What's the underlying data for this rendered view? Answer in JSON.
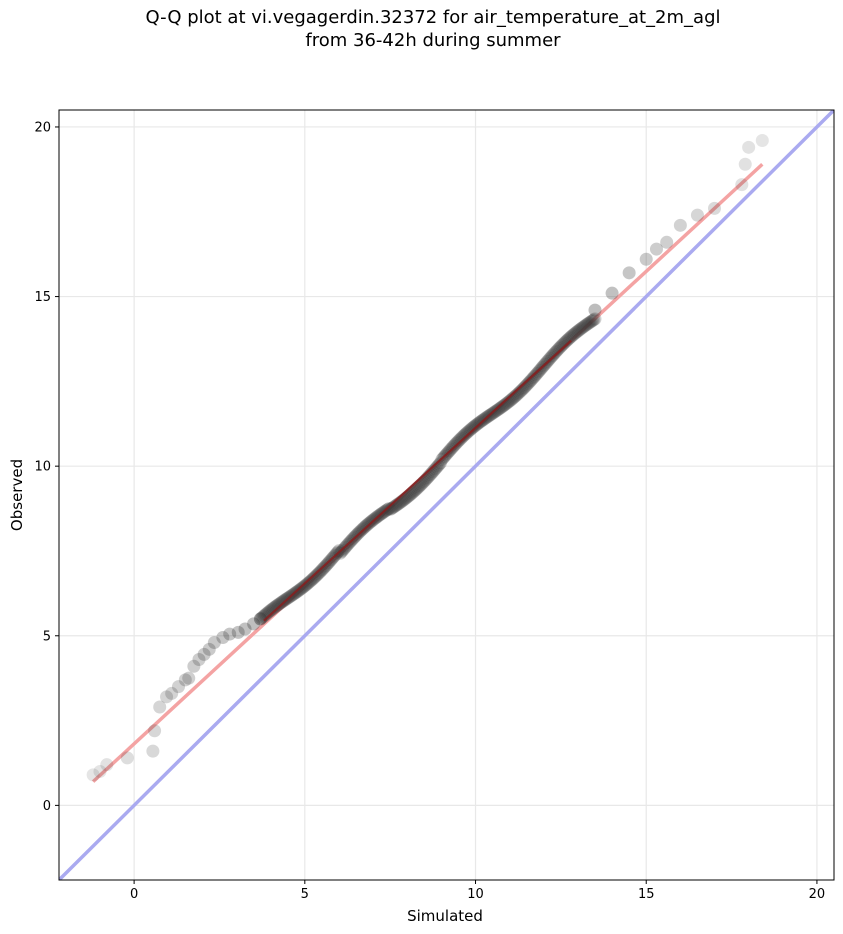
{
  "chart_data": {
    "type": "scatter",
    "title_line1": "Q-Q plot at vi.vegagerdin.32372 for air_temperature_at_2m_agl",
    "title_line2": "from 36-42h during summer",
    "xlabel": "Simulated",
    "ylabel": "Observed",
    "xlim": [
      -2.2,
      20.5
    ],
    "ylim": [
      -2.2,
      20.5
    ],
    "xticks": [
      0,
      5,
      10,
      15,
      20
    ],
    "yticks": [
      0,
      5,
      10,
      15,
      20
    ],
    "grid": true,
    "colors": {
      "points": "#333333",
      "fit_line": "#f4a3a3",
      "identity_line": "#aaaaf0",
      "fit_inner": "#8b1a1a"
    },
    "identity_line": {
      "x": [
        -2.2,
        20.5
      ],
      "y": [
        -2.2,
        20.5
      ]
    },
    "fit_line": {
      "x": [
        -1.2,
        18.4
      ],
      "y": [
        0.7,
        18.9
      ]
    },
    "quantile_tails": [
      {
        "x": -1.2,
        "y": 0.9
      },
      {
        "x": -1.0,
        "y": 1.0
      },
      {
        "x": -0.8,
        "y": 1.2
      },
      {
        "x": -0.2,
        "y": 1.4
      },
      {
        "x": 0.55,
        "y": 1.6
      },
      {
        "x": 0.6,
        "y": 2.2
      },
      {
        "x": 0.75,
        "y": 2.9
      },
      {
        "x": 0.95,
        "y": 3.2
      },
      {
        "x": 1.1,
        "y": 3.3
      },
      {
        "x": 1.3,
        "y": 3.5
      },
      {
        "x": 1.5,
        "y": 3.7
      },
      {
        "x": 1.6,
        "y": 3.75
      },
      {
        "x": 1.75,
        "y": 4.1
      },
      {
        "x": 1.9,
        "y": 4.3
      },
      {
        "x": 2.05,
        "y": 4.45
      },
      {
        "x": 2.2,
        "y": 4.6
      },
      {
        "x": 2.35,
        "y": 4.8
      },
      {
        "x": 2.6,
        "y": 4.95
      },
      {
        "x": 2.8,
        "y": 5.05
      },
      {
        "x": 3.05,
        "y": 5.1
      },
      {
        "x": 3.25,
        "y": 5.2
      },
      {
        "x": 3.5,
        "y": 5.35
      },
      {
        "x": 3.7,
        "y": 5.5
      },
      {
        "x": 13.5,
        "y": 14.6
      },
      {
        "x": 14.0,
        "y": 15.1
      },
      {
        "x": 14.5,
        "y": 15.7
      },
      {
        "x": 15.0,
        "y": 16.1
      },
      {
        "x": 15.3,
        "y": 16.4
      },
      {
        "x": 15.6,
        "y": 16.6
      },
      {
        "x": 16.0,
        "y": 17.1
      },
      {
        "x": 16.5,
        "y": 17.4
      },
      {
        "x": 17.0,
        "y": 17.6
      },
      {
        "x": 17.8,
        "y": 18.3
      },
      {
        "x": 17.9,
        "y": 18.9
      },
      {
        "x": 18.0,
        "y": 19.4
      },
      {
        "x": 18.4,
        "y": 19.6
      }
    ]
  }
}
